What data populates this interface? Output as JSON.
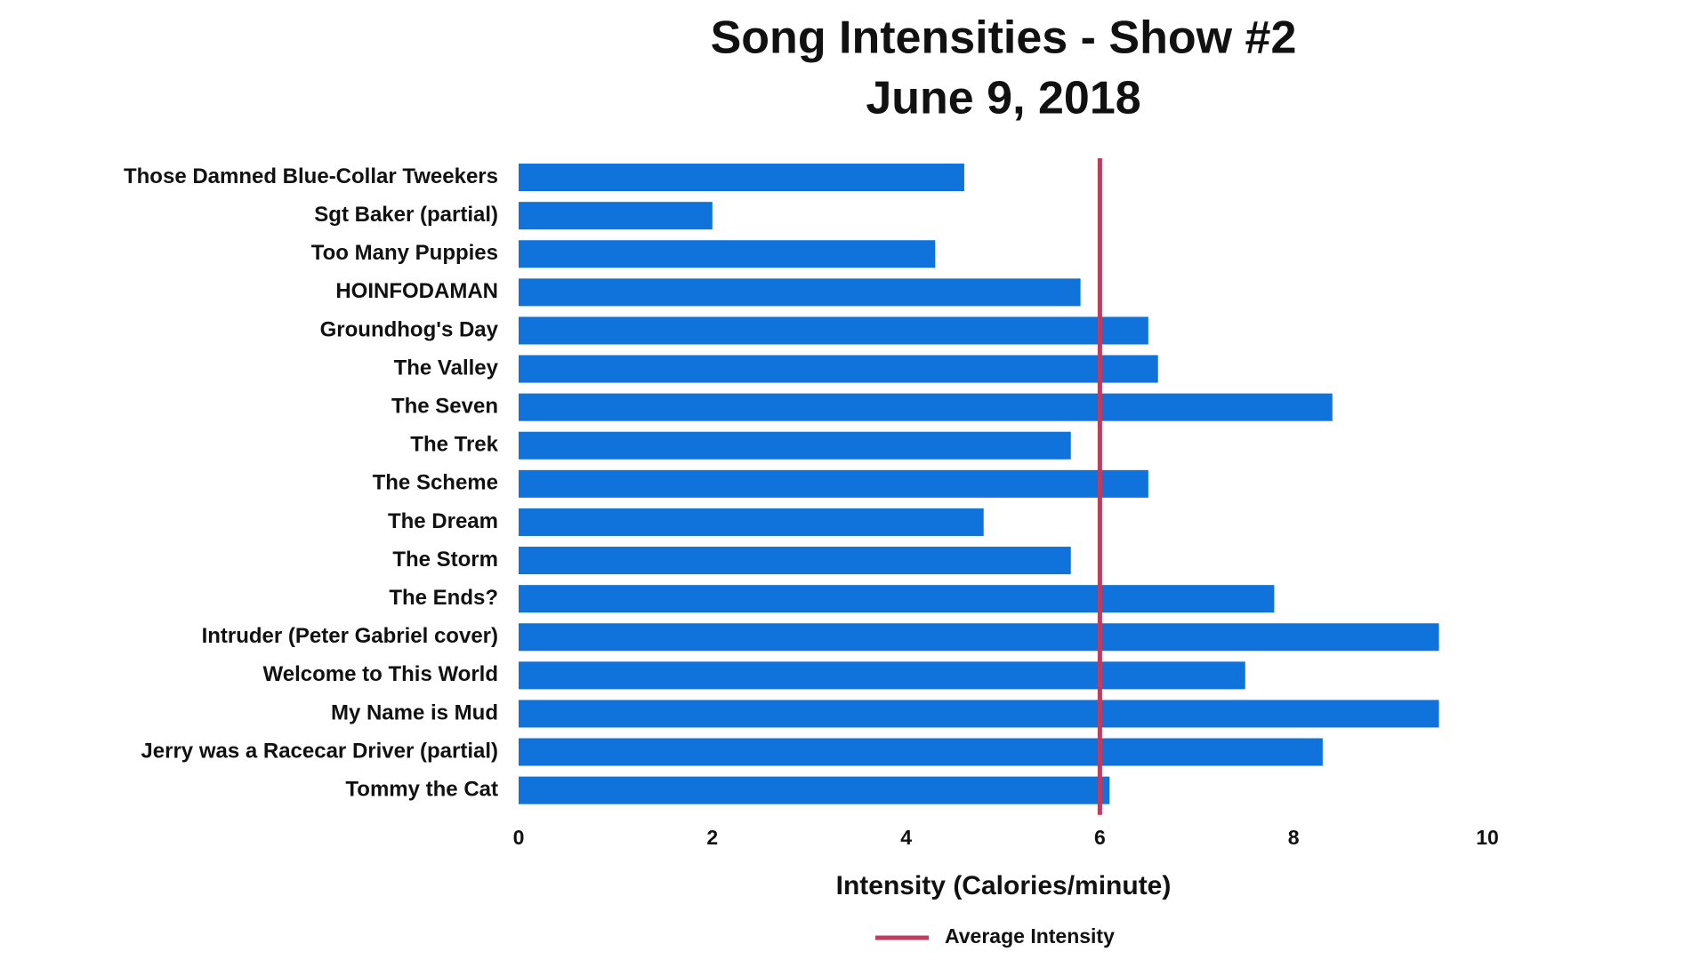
{
  "chart_data": {
    "type": "bar",
    "orientation": "horizontal",
    "title": "Song Intensities - Show #2",
    "subtitle": "June 9, 2018",
    "x_label": "Intensity (Calories/minute)",
    "categories": [
      "Those Damned Blue-Collar Tweekers",
      "Sgt Baker (partial)",
      "Too Many Puppies",
      "HOINFODAMAN",
      "Groundhog's Day",
      "The Valley",
      "The Seven",
      "The Trek",
      "The Scheme",
      "The Dream",
      "The Storm",
      "The Ends?",
      "Intruder (Peter Gabriel cover)",
      "Welcome to This World",
      "My Name is Mud",
      "Jerry was a Racecar Driver (partial)",
      "Tommy the Cat"
    ],
    "values": [
      4.6,
      2.0,
      4.3,
      5.8,
      6.5,
      6.6,
      8.4,
      5.7,
      6.5,
      4.8,
      5.7,
      7.8,
      9.5,
      7.5,
      9.5,
      8.3,
      6.1
    ],
    "color": "#0f73db",
    "xlim": [
      0,
      10
    ],
    "xticks": [
      0,
      2,
      4,
      6,
      8,
      10
    ],
    "grid": false,
    "reference_line": {
      "name": "Average Intensity",
      "value": 6,
      "color": "#c23b5c"
    },
    "legend_position": "bottom"
  }
}
